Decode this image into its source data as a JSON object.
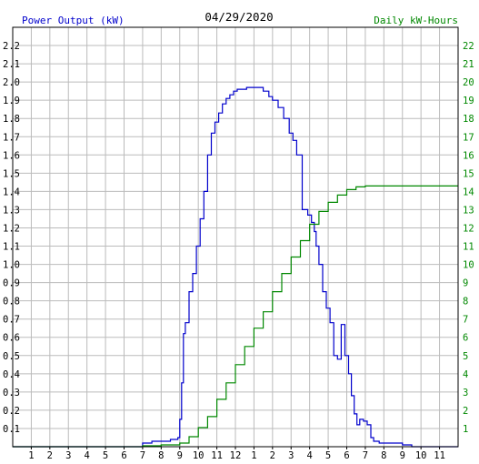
{
  "chart_data": {
    "type": "line",
    "title": "04/29/2020",
    "ylabel": "Power Output (kW)",
    "y2label": "Daily kW-Hours",
    "x_ticks": [
      "1",
      "2",
      "3",
      "4",
      "5",
      "6",
      "7",
      "8",
      "9",
      "10",
      "11",
      "12",
      "1",
      "2",
      "3",
      "4",
      "5",
      "6",
      "7",
      "8",
      "9",
      "10",
      "11"
    ],
    "x_range_hours": [
      0,
      24
    ],
    "ylim": [
      0,
      2.3
    ],
    "y_ticks": [
      "0.1",
      "0.2",
      "0.3",
      "0.4",
      "0.5",
      "0.6",
      "0.7",
      "0.8",
      "0.9",
      "1.0",
      "1.1",
      "1.2",
      "1.3",
      "1.4",
      "1.5",
      "1.6",
      "1.7",
      "1.8",
      "1.9",
      "2.0",
      "2.1",
      "2.2"
    ],
    "y2lim": [
      0,
      23
    ],
    "y2_ticks": [
      "1",
      "2",
      "3",
      "4",
      "5",
      "6",
      "7",
      "8",
      "9",
      "10",
      "11",
      "12",
      "13",
      "14",
      "15",
      "16",
      "17",
      "18",
      "19",
      "20",
      "21",
      "22"
    ],
    "grid": true,
    "series": [
      {
        "name": "Power Output (kW)",
        "axis": "left",
        "color": "#0000cc",
        "x": [
          0,
          6.5,
          7.0,
          7.5,
          8.0,
          8.5,
          8.9,
          9.0,
          9.1,
          9.2,
          9.3,
          9.5,
          9.7,
          9.9,
          10.1,
          10.3,
          10.5,
          10.7,
          10.9,
          11.1,
          11.3,
          11.5,
          11.7,
          11.9,
          12.1,
          12.3,
          12.6,
          13.0,
          13.5,
          13.8,
          14.0,
          14.3,
          14.6,
          14.9,
          15.1,
          15.3,
          15.6,
          15.9,
          16.1,
          16.25,
          16.35,
          16.5,
          16.7,
          16.9,
          17.1,
          17.3,
          17.5,
          17.7,
          17.9,
          18.1,
          18.25,
          18.4,
          18.55,
          18.7,
          18.9,
          19.1,
          19.3,
          19.45,
          19.6,
          19.75,
          19.9,
          20.05,
          20.2,
          21.0,
          21.5,
          21.55,
          24
        ],
        "y": [
          0,
          0,
          0.02,
          0.03,
          0.03,
          0.04,
          0.05,
          0.15,
          0.35,
          0.62,
          0.68,
          0.85,
          0.95,
          1.1,
          1.25,
          1.4,
          1.6,
          1.72,
          1.78,
          1.83,
          1.88,
          1.91,
          1.93,
          1.95,
          1.96,
          1.96,
          1.97,
          1.97,
          1.95,
          1.92,
          1.9,
          1.86,
          1.8,
          1.72,
          1.68,
          1.6,
          1.3,
          1.27,
          1.23,
          1.18,
          1.1,
          1.0,
          0.85,
          0.76,
          0.68,
          0.5,
          0.48,
          0.67,
          0.5,
          0.4,
          0.28,
          0.18,
          0.12,
          0.15,
          0.14,
          0.12,
          0.05,
          0.03,
          0.03,
          0.02,
          0.02,
          0.02,
          0.02,
          0.01,
          0.0,
          0.0,
          0
        ]
      },
      {
        "name": "Daily kW-Hours",
        "axis": "right",
        "color": "#008800",
        "x": [
          0,
          7.0,
          8.0,
          9.0,
          9.5,
          10.0,
          10.5,
          11.0,
          11.5,
          12.0,
          12.5,
          13.0,
          13.5,
          14.0,
          14.5,
          15.0,
          15.5,
          16.0,
          16.5,
          17.0,
          17.5,
          18.0,
          18.5,
          19.0,
          19.5,
          20.0,
          21.0,
          24
        ],
        "y": [
          0,
          0.05,
          0.1,
          0.2,
          0.55,
          1.05,
          1.65,
          2.6,
          3.5,
          4.5,
          5.5,
          6.5,
          7.4,
          8.5,
          9.5,
          10.4,
          11.3,
          12.2,
          12.9,
          13.4,
          13.8,
          14.1,
          14.25,
          14.3,
          14.3,
          14.3,
          14.3,
          14.3
        ]
      }
    ]
  }
}
